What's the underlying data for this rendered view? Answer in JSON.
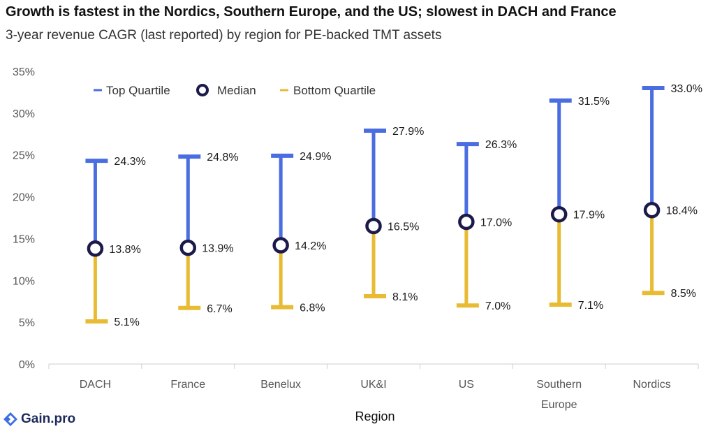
{
  "title": "Growth is fastest in the Nordics, Southern Europe, and the US; slowest in DACH and France",
  "subtitle": "3-year revenue CAGR (last reported) by region for PE-backed TMT assets",
  "brand": "Gain.pro",
  "colors": {
    "top": "#4a6ee0",
    "bottom": "#e8bb33",
    "median_stroke": "#1b1a4a",
    "axis": "#cfcfcf"
  },
  "chart_data": {
    "type": "range",
    "title": "Growth is fastest in the Nordics, Southern Europe, and the US; slowest in DACH and France",
    "subtitle": "3-year revenue CAGR (last reported) by region for PE-backed TMT assets",
    "xlabel": "Region",
    "ylabel": "",
    "ylim": [
      0,
      35
    ],
    "yticks": [
      "0%",
      "5%",
      "10%",
      "15%",
      "20%",
      "25%",
      "30%",
      "35%"
    ],
    "grid": false,
    "legend_position": "top-left",
    "legend": [
      "Top Quartile",
      "Median",
      "Bottom Quartile"
    ],
    "categories": [
      [
        "DACH"
      ],
      [
        "France"
      ],
      [
        "Benelux"
      ],
      [
        "UK&I"
      ],
      [
        "US"
      ],
      [
        "Southern",
        "Europe"
      ],
      [
        "Nordics"
      ]
    ],
    "series": [
      {
        "name": "Top Quartile",
        "values": [
          24.3,
          24.8,
          24.9,
          27.9,
          26.3,
          31.5,
          33.0
        ],
        "labels": [
          "24.3%",
          "24.8%",
          "24.9%",
          "27.9%",
          "26.3%",
          "31.5%",
          "33.0%"
        ]
      },
      {
        "name": "Median",
        "values": [
          13.8,
          13.9,
          14.2,
          16.5,
          17.0,
          17.9,
          18.4
        ],
        "labels": [
          "13.8%",
          "13.9%",
          "14.2%",
          "16.5%",
          "17.0%",
          "17.9%",
          "18.4%"
        ]
      },
      {
        "name": "Bottom Quartile",
        "values": [
          5.1,
          6.7,
          6.8,
          8.1,
          7.0,
          7.1,
          8.5
        ],
        "labels": [
          "5.1%",
          "6.7%",
          "6.8%",
          "8.1%",
          "7.0%",
          "7.1%",
          "8.5%"
        ]
      }
    ]
  }
}
